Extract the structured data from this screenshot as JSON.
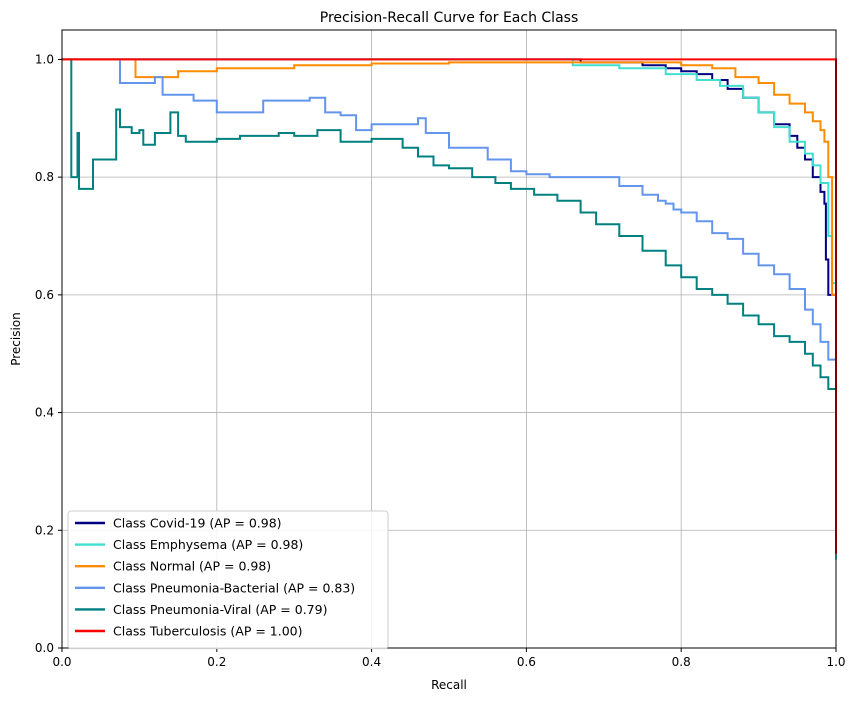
{
  "chart_data": {
    "type": "line",
    "title": "Precision-Recall Curve for Each Class",
    "xlabel": "Recall",
    "ylabel": "Precision",
    "xlim": [
      0.0,
      1.0
    ],
    "ylim": [
      0.0,
      1.05
    ],
    "xticks": [
      "0.0",
      "0.2",
      "0.4",
      "0.6",
      "0.8",
      "1.0"
    ],
    "yticks": [
      "0.0",
      "0.2",
      "0.4",
      "0.6",
      "0.8",
      "1.0"
    ],
    "grid": true,
    "legend_position": "lower-left",
    "series": [
      {
        "name": "Class Covid-19 (AP = 0.98)",
        "color": "#000080",
        "points": [
          [
            0.0,
            1.0
          ],
          [
            0.65,
            1.0
          ],
          [
            0.67,
            0.995
          ],
          [
            0.75,
            0.99
          ],
          [
            0.78,
            0.985
          ],
          [
            0.8,
            0.98
          ],
          [
            0.82,
            0.975
          ],
          [
            0.84,
            0.965
          ],
          [
            0.86,
            0.95
          ],
          [
            0.88,
            0.935
          ],
          [
            0.9,
            0.91
          ],
          [
            0.92,
            0.89
          ],
          [
            0.94,
            0.87
          ],
          [
            0.95,
            0.85
          ],
          [
            0.96,
            0.83
          ],
          [
            0.97,
            0.8
          ],
          [
            0.98,
            0.775
          ],
          [
            0.985,
            0.755
          ],
          [
            0.987,
            0.66
          ],
          [
            0.99,
            0.6
          ],
          [
            1.0,
            0.58
          ],
          [
            1.0,
            0.33
          ]
        ]
      },
      {
        "name": "Class Emphysema (AP = 0.98)",
        "color": "#40e0d0",
        "points": [
          [
            0.0,
            1.0
          ],
          [
            0.6,
            1.0
          ],
          [
            0.66,
            0.99
          ],
          [
            0.72,
            0.985
          ],
          [
            0.78,
            0.975
          ],
          [
            0.82,
            0.965
          ],
          [
            0.85,
            0.955
          ],
          [
            0.88,
            0.935
          ],
          [
            0.9,
            0.91
          ],
          [
            0.92,
            0.885
          ],
          [
            0.94,
            0.86
          ],
          [
            0.96,
            0.84
          ],
          [
            0.97,
            0.82
          ],
          [
            0.98,
            0.79
          ],
          [
            0.99,
            0.7
          ],
          [
            0.995,
            0.62
          ],
          [
            1.0,
            0.48
          ],
          [
            1.0,
            0.15
          ]
        ]
      },
      {
        "name": "Class Normal (AP = 0.98)",
        "color": "#ff8c00",
        "points": [
          [
            0.0,
            1.0
          ],
          [
            0.09,
            1.0
          ],
          [
            0.095,
            0.97
          ],
          [
            0.15,
            0.98
          ],
          [
            0.2,
            0.985
          ],
          [
            0.3,
            0.99
          ],
          [
            0.4,
            0.993
          ],
          [
            0.5,
            0.995
          ],
          [
            0.6,
            0.995
          ],
          [
            0.7,
            0.995
          ],
          [
            0.8,
            0.99
          ],
          [
            0.84,
            0.985
          ],
          [
            0.87,
            0.97
          ],
          [
            0.9,
            0.96
          ],
          [
            0.92,
            0.94
          ],
          [
            0.94,
            0.925
          ],
          [
            0.96,
            0.91
          ],
          [
            0.97,
            0.895
          ],
          [
            0.98,
            0.88
          ],
          [
            0.985,
            0.86
          ],
          [
            0.99,
            0.8
          ],
          [
            0.995,
            0.6
          ],
          [
            1.0,
            0.45
          ]
        ]
      },
      {
        "name": "Class Pneumonia-Bacterial (AP = 0.83)",
        "color": "#6495ed",
        "points": [
          [
            0.07,
            1.0
          ],
          [
            0.075,
            0.96
          ],
          [
            0.12,
            0.97
          ],
          [
            0.13,
            0.94
          ],
          [
            0.17,
            0.93
          ],
          [
            0.2,
            0.91
          ],
          [
            0.26,
            0.93
          ],
          [
            0.32,
            0.935
          ],
          [
            0.34,
            0.91
          ],
          [
            0.36,
            0.905
          ],
          [
            0.38,
            0.88
          ],
          [
            0.4,
            0.89
          ],
          [
            0.46,
            0.9
          ],
          [
            0.47,
            0.875
          ],
          [
            0.5,
            0.85
          ],
          [
            0.55,
            0.83
          ],
          [
            0.58,
            0.81
          ],
          [
            0.6,
            0.805
          ],
          [
            0.63,
            0.8
          ],
          [
            0.66,
            0.8
          ],
          [
            0.69,
            0.8
          ],
          [
            0.72,
            0.785
          ],
          [
            0.75,
            0.77
          ],
          [
            0.77,
            0.76
          ],
          [
            0.78,
            0.755
          ],
          [
            0.79,
            0.745
          ],
          [
            0.8,
            0.74
          ],
          [
            0.82,
            0.725
          ],
          [
            0.84,
            0.705
          ],
          [
            0.86,
            0.695
          ],
          [
            0.88,
            0.67
          ],
          [
            0.9,
            0.65
          ],
          [
            0.92,
            0.635
          ],
          [
            0.94,
            0.61
          ],
          [
            0.96,
            0.575
          ],
          [
            0.97,
            0.55
          ],
          [
            0.98,
            0.52
          ],
          [
            0.99,
            0.49
          ],
          [
            1.0,
            0.47
          ],
          [
            1.0,
            0.34
          ]
        ]
      },
      {
        "name": "Class Pneumonia-Viral (AP = 0.79)",
        "color": "#008080",
        "points": [
          [
            0.01,
            1.0
          ],
          [
            0.012,
            0.8
          ],
          [
            0.02,
            0.875
          ],
          [
            0.022,
            0.78
          ],
          [
            0.04,
            0.83
          ],
          [
            0.07,
            0.915
          ],
          [
            0.075,
            0.885
          ],
          [
            0.09,
            0.875
          ],
          [
            0.1,
            0.88
          ],
          [
            0.105,
            0.855
          ],
          [
            0.12,
            0.875
          ],
          [
            0.14,
            0.91
          ],
          [
            0.15,
            0.87
          ],
          [
            0.16,
            0.86
          ],
          [
            0.2,
            0.865
          ],
          [
            0.23,
            0.87
          ],
          [
            0.28,
            0.875
          ],
          [
            0.3,
            0.87
          ],
          [
            0.33,
            0.88
          ],
          [
            0.36,
            0.86
          ],
          [
            0.4,
            0.865
          ],
          [
            0.44,
            0.85
          ],
          [
            0.46,
            0.835
          ],
          [
            0.48,
            0.82
          ],
          [
            0.5,
            0.815
          ],
          [
            0.53,
            0.8
          ],
          [
            0.56,
            0.79
          ],
          [
            0.58,
            0.78
          ],
          [
            0.61,
            0.77
          ],
          [
            0.64,
            0.76
          ],
          [
            0.67,
            0.74
          ],
          [
            0.69,
            0.72
          ],
          [
            0.72,
            0.7
          ],
          [
            0.75,
            0.675
          ],
          [
            0.78,
            0.65
          ],
          [
            0.8,
            0.63
          ],
          [
            0.82,
            0.61
          ],
          [
            0.84,
            0.6
          ],
          [
            0.86,
            0.585
          ],
          [
            0.88,
            0.565
          ],
          [
            0.9,
            0.55
          ],
          [
            0.92,
            0.53
          ],
          [
            0.94,
            0.52
          ],
          [
            0.96,
            0.5
          ],
          [
            0.97,
            0.48
          ],
          [
            0.98,
            0.46
          ],
          [
            0.99,
            0.44
          ],
          [
            1.0,
            0.42
          ],
          [
            1.0,
            0.33
          ]
        ]
      },
      {
        "name": "Class Tuberculosis (AP = 1.00)",
        "color": "#ff0000",
        "points": [
          [
            0.0,
            1.0
          ],
          [
            1.0,
            1.0
          ],
          [
            1.0,
            0.16
          ]
        ]
      }
    ]
  }
}
